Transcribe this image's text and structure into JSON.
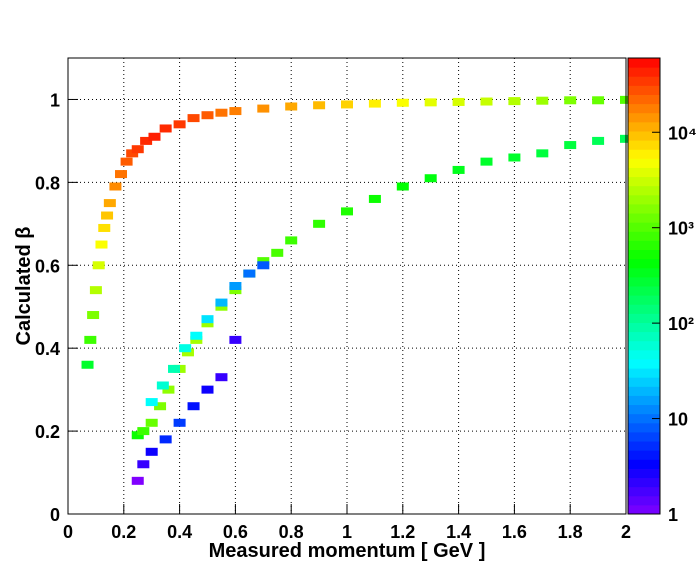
{
  "chart_data": {
    "type": "hist2d",
    "x_label": "Measured momentum [ GeV ]",
    "y_label": "Calculated β",
    "xlim": [
      0,
      2
    ],
    "ylim": [
      0,
      1.1
    ],
    "xticks": [
      0,
      0.2,
      0.4,
      0.6,
      0.8,
      1,
      1.2,
      1.4,
      1.6,
      1.8,
      2
    ],
    "yticks": [
      0,
      0.2,
      0.4,
      0.6,
      0.8,
      1
    ],
    "zlim": [
      1,
      60000
    ],
    "zlog": true,
    "zticks": [
      1,
      10,
      {
        "value": 100,
        "label": "10²"
      },
      {
        "value": 1000,
        "label": "10³"
      },
      {
        "value": 10000,
        "label": "10⁴"
      }
    ],
    "grid": true,
    "cells": {
      "x": [
        0.07,
        0.08,
        0.09,
        0.1,
        0.11,
        0.12,
        0.13,
        0.14,
        0.15,
        0.17,
        0.19,
        0.21,
        0.23,
        0.25,
        0.28,
        0.31,
        0.35,
        0.4,
        0.45,
        0.5,
        0.55,
        0.6,
        0.7,
        0.8,
        0.9,
        1.0,
        1.1,
        1.2,
        1.3,
        1.4,
        1.5,
        1.6,
        1.7,
        1.8,
        1.9,
        2.0,
        0.25,
        0.27,
        0.3,
        0.33,
        0.36,
        0.4,
        0.43,
        0.46,
        0.5,
        0.55,
        0.6,
        0.65,
        0.7,
        0.75,
        0.8,
        0.9,
        1.0,
        1.1,
        1.2,
        1.3,
        1.4,
        1.5,
        1.6,
        1.7,
        1.8,
        1.9,
        2.0,
        0.3,
        0.34,
        0.38,
        0.42,
        0.46,
        0.5,
        0.55,
        0.6,
        0.65,
        0.7,
        0.25,
        0.27,
        0.3,
        0.35,
        0.4,
        0.45,
        0.5,
        0.55,
        0.6
      ],
      "y": [
        0.36,
        0.42,
        0.48,
        0.54,
        0.6,
        0.65,
        0.69,
        0.72,
        0.75,
        0.79,
        0.82,
        0.85,
        0.87,
        0.88,
        0.9,
        0.91,
        0.93,
        0.94,
        0.955,
        0.962,
        0.968,
        0.972,
        0.978,
        0.983,
        0.986,
        0.988,
        0.99,
        0.992,
        0.993,
        0.994,
        0.995,
        0.996,
        0.997,
        0.998,
        0.998,
        0.999,
        0.19,
        0.2,
        0.22,
        0.26,
        0.3,
        0.35,
        0.39,
        0.42,
        0.46,
        0.5,
        0.54,
        0.58,
        0.61,
        0.63,
        0.66,
        0.7,
        0.73,
        0.76,
        0.79,
        0.81,
        0.83,
        0.85,
        0.86,
        0.87,
        0.89,
        0.9,
        0.905,
        0.27,
        0.31,
        0.35,
        0.4,
        0.43,
        0.47,
        0.51,
        0.55,
        0.58,
        0.6,
        0.08,
        0.12,
        0.15,
        0.18,
        0.22,
        0.26,
        0.3,
        0.33,
        0.42
      ],
      "counts": [
        300,
        800,
        1500,
        2500,
        3500,
        5000,
        7000,
        9000,
        12000,
        16000,
        20000,
        25000,
        30000,
        35000,
        40000,
        45000,
        40000,
        35000,
        30000,
        25000,
        20000,
        18000,
        15000,
        12000,
        10000,
        8000,
        6000,
        5000,
        4000,
        3500,
        3000,
        2500,
        2000,
        1500,
        1200,
        1000,
        500,
        800,
        1200,
        1500,
        1800,
        2000,
        2200,
        2200,
        2000,
        1800,
        1500,
        1200,
        1000,
        900,
        800,
        700,
        600,
        500,
        450,
        400,
        350,
        300,
        300,
        250,
        250,
        200,
        200,
        40,
        60,
        80,
        50,
        40,
        30,
        20,
        15,
        10,
        8,
        1,
        2,
        3,
        5,
        6,
        4,
        3,
        2,
        2
      ]
    }
  }
}
